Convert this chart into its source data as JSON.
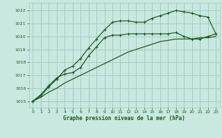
{
  "background_color": "#c8e8e0",
  "grid_color": "#a0c8c0",
  "line_color": "#1a5c1a",
  "title": "Graphe pression niveau de la mer (hPa)",
  "xlim": [
    -0.5,
    23.5
  ],
  "ylim": [
    1014.5,
    1022.6
  ],
  "yticks": [
    1015,
    1016,
    1017,
    1018,
    1019,
    1020,
    1021,
    1022
  ],
  "xticks": [
    0,
    1,
    2,
    3,
    4,
    5,
    6,
    7,
    8,
    9,
    10,
    11,
    12,
    13,
    14,
    15,
    16,
    17,
    18,
    19,
    20,
    21,
    22,
    23
  ],
  "series1_x": [
    0,
    1,
    2,
    3,
    4,
    5,
    6,
    7,
    8,
    9,
    10,
    11,
    12,
    13,
    14,
    15,
    16,
    17,
    18,
    19,
    20,
    21,
    22,
    23
  ],
  "series1_y": [
    1015.0,
    1015.5,
    1016.2,
    1016.8,
    1017.1,
    1017.2,
    1017.6,
    1018.5,
    1019.2,
    1019.9,
    1020.1,
    1020.1,
    1020.2,
    1020.2,
    1020.2,
    1020.2,
    1020.2,
    1020.2,
    1020.3,
    1020.0,
    1019.8,
    1019.8,
    1020.0,
    1020.2
  ],
  "series2_x": [
    0,
    1,
    2,
    3,
    4,
    5,
    6,
    7,
    8,
    9,
    10,
    11,
    12,
    13,
    14,
    15,
    16,
    17,
    18,
    19,
    20,
    21,
    22,
    23
  ],
  "series2_y": [
    1015.0,
    1015.4,
    1016.1,
    1016.7,
    1017.4,
    1017.7,
    1018.3,
    1019.1,
    1019.8,
    1020.5,
    1021.1,
    1021.2,
    1021.2,
    1021.1,
    1021.1,
    1021.4,
    1021.6,
    1021.8,
    1022.0,
    1021.9,
    1021.8,
    1021.6,
    1021.5,
    1020.2
  ],
  "series3_x": [
    0,
    1,
    2,
    3,
    4,
    5,
    6,
    7,
    8,
    9,
    10,
    11,
    12,
    13,
    14,
    15,
    16,
    17,
    18,
    19,
    20,
    21,
    22,
    23
  ],
  "series3_y": [
    1015.0,
    1015.3,
    1015.7,
    1016.0,
    1016.4,
    1016.7,
    1017.0,
    1017.3,
    1017.6,
    1017.9,
    1018.2,
    1018.5,
    1018.8,
    1019.0,
    1019.2,
    1019.4,
    1019.6,
    1019.7,
    1019.8,
    1019.8,
    1019.8,
    1019.9,
    1019.9,
    1020.0
  ]
}
